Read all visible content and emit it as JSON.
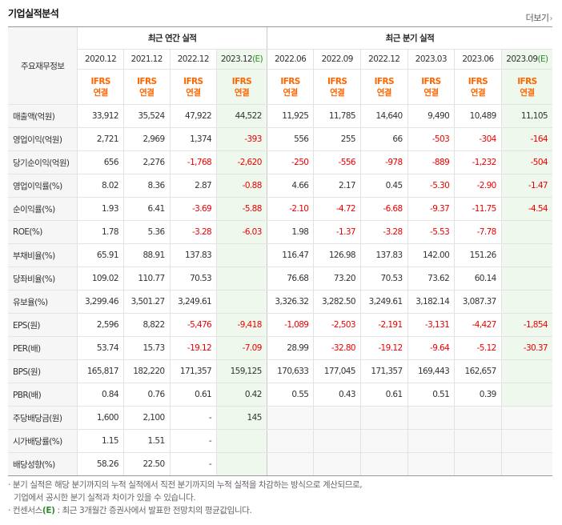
{
  "page_title": "기업실적분석",
  "more_label": "더보기",
  "header": {
    "corner_label": "주요재무정보",
    "annual_group": "최근 연간 실적",
    "quarter_group": "최근 분기 실적",
    "periods": [
      {
        "label": "2020.12",
        "est": false
      },
      {
        "label": "2021.12",
        "est": false
      },
      {
        "label": "2022.12",
        "est": false
      },
      {
        "label": "2023.12",
        "est": true
      },
      {
        "label": "2022.06",
        "est": false
      },
      {
        "label": "2022.09",
        "est": false
      },
      {
        "label": "2022.12",
        "est": false
      },
      {
        "label": "2023.03",
        "est": false
      },
      {
        "label": "2023.06",
        "est": false
      },
      {
        "label": "2023.09",
        "est": true
      }
    ],
    "est_mark": "(E)",
    "std_line1": "IFRS",
    "std_line2": "연결"
  },
  "rows": [
    {
      "label": "매출액(억원)",
      "values": [
        "33,912",
        "35,524",
        "47,922",
        "44,522",
        "11,925",
        "11,785",
        "14,640",
        "9,490",
        "10,489",
        "11,105"
      ]
    },
    {
      "label": "영업이익(억원)",
      "values": [
        "2,721",
        "2,969",
        "1,374",
        "-393",
        "556",
        "255",
        "66",
        "-503",
        "-304",
        "-164"
      ]
    },
    {
      "label": "당기순이익(억원)",
      "values": [
        "656",
        "2,276",
        "-1,768",
        "-2,620",
        "-250",
        "-556",
        "-978",
        "-889",
        "-1,232",
        "-504"
      ]
    },
    {
      "label": "영업이익률(%)",
      "values": [
        "8.02",
        "8.36",
        "2.87",
        "-0.88",
        "4.66",
        "2.17",
        "0.45",
        "-5.30",
        "-2.90",
        "-1.47"
      ]
    },
    {
      "label": "순이익률(%)",
      "values": [
        "1.93",
        "6.41",
        "-3.69",
        "-5.88",
        "-2.10",
        "-4.72",
        "-6.68",
        "-9.37",
        "-11.75",
        "-4.54"
      ]
    },
    {
      "label": "ROE(%)",
      "values": [
        "1.78",
        "5.36",
        "-3.28",
        "-6.03",
        "1.98",
        "-1.37",
        "-3.28",
        "-5.53",
        "-7.78",
        ""
      ]
    },
    {
      "label": "부채비율(%)",
      "values": [
        "65.91",
        "88.91",
        "137.83",
        "",
        "116.47",
        "126.98",
        "137.83",
        "142.00",
        "151.26",
        ""
      ]
    },
    {
      "label": "당좌비율(%)",
      "values": [
        "109.02",
        "110.77",
        "70.53",
        "",
        "76.68",
        "73.20",
        "70.53",
        "73.62",
        "60.14",
        ""
      ]
    },
    {
      "label": "유보율(%)",
      "values": [
        "3,299.46",
        "3,501.27",
        "3,249.61",
        "",
        "3,326.32",
        "3,282.50",
        "3,249.61",
        "3,182.14",
        "3,087.37",
        ""
      ]
    },
    {
      "label": "EPS(원)",
      "values": [
        "2,596",
        "8,822",
        "-5,476",
        "-9,418",
        "-1,089",
        "-2,503",
        "-2,191",
        "-3,131",
        "-4,427",
        "-1,854"
      ]
    },
    {
      "label": "PER(배)",
      "values": [
        "53.74",
        "15.73",
        "-19.12",
        "-7.09",
        "28.99",
        "-32.80",
        "-19.12",
        "-9.64",
        "-5.12",
        "-30.37"
      ]
    },
    {
      "label": "BPS(원)",
      "values": [
        "165,817",
        "182,220",
        "171,357",
        "159,125",
        "170,633",
        "177,045",
        "171,357",
        "169,443",
        "162,657",
        ""
      ]
    },
    {
      "label": "PBR(배)",
      "values": [
        "0.84",
        "0.76",
        "0.61",
        "0.42",
        "0.55",
        "0.43",
        "0.61",
        "0.51",
        "0.39",
        ""
      ]
    },
    {
      "label": "주당배당금(원)",
      "values": [
        "1,600",
        "2,100",
        "-",
        "145",
        "",
        "",
        "",
        "",
        "",
        ""
      ]
    },
    {
      "label": "시가배당률(%)",
      "values": [
        "1.15",
        "1.51",
        "-",
        "",
        "",
        "",
        "",
        "",
        "",
        ""
      ]
    },
    {
      "label": "배당성향(%)",
      "values": [
        "58.26",
        "22.50",
        "-",
        "",
        "",
        "",
        "",
        "",
        "",
        ""
      ]
    }
  ],
  "footnotes": {
    "line1": "· 분기 실적은 해당 분기까지의 누적 실적에서 직전 분기까지의 누적 실적을 차감하는 방식으로 계산되므로,",
    "line2": "  기업에서 공시한 분기 실적과 차이가 있을 수 있습니다.",
    "line3_prefix": "· 컨센서스",
    "line3_mark": "(E)",
    "line3_suffix": " : 최근 3개월간 증권사에서 발표한 전망치의 평균값입니다."
  },
  "colors": {
    "negative": "#e00000",
    "ifrs": "#ff6600",
    "estimate_bg": "#eef8ec",
    "estimate_mark": "#2e8b2e"
  }
}
